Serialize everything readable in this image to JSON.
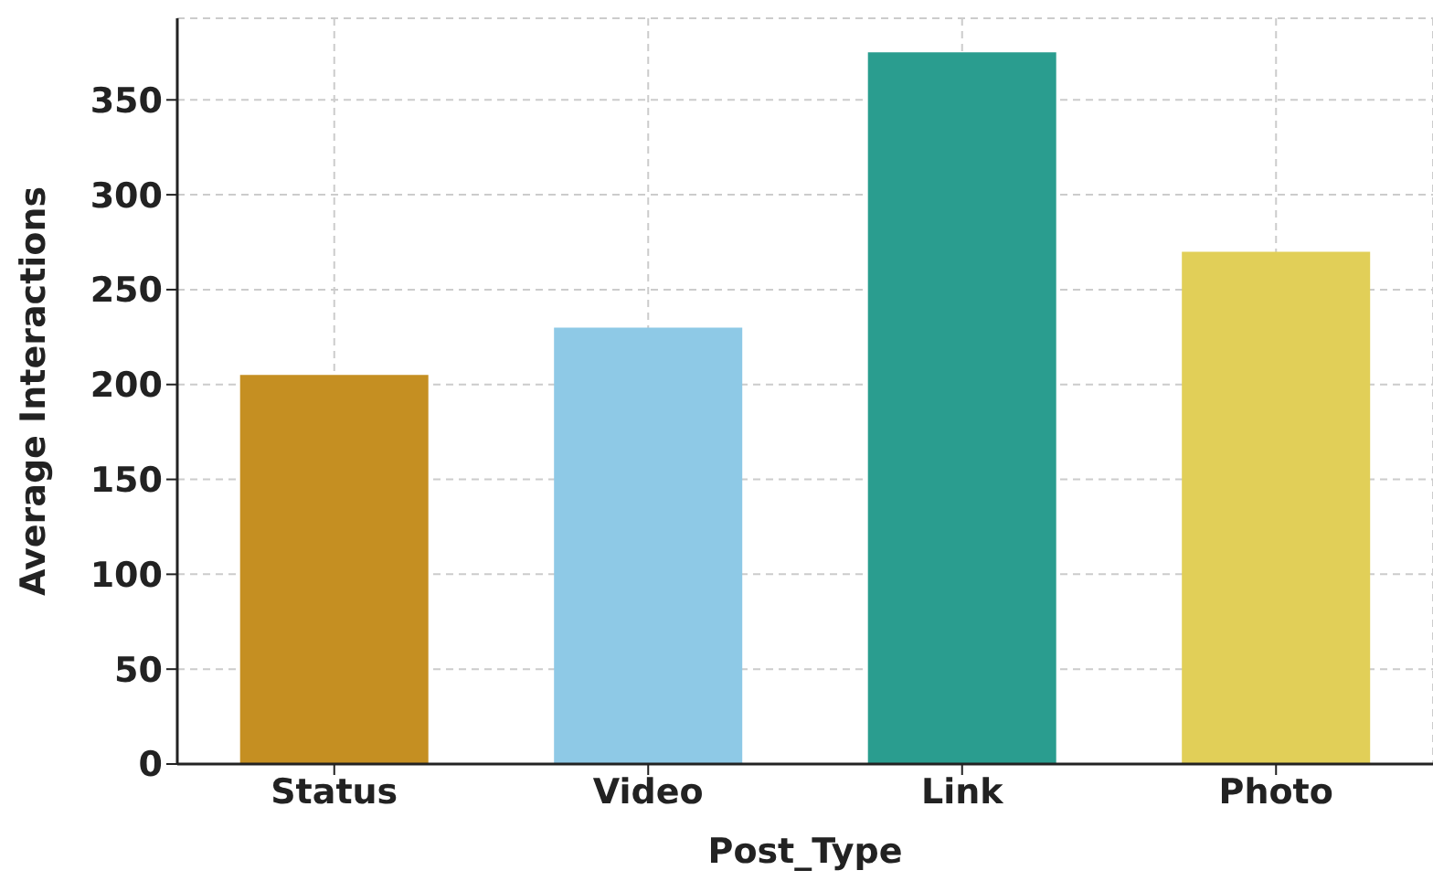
{
  "chart_data": {
    "type": "bar",
    "xlabel": "Post_Type",
    "ylabel": "Average Interactions",
    "categories": [
      "Status",
      "Video",
      "Link",
      "Photo"
    ],
    "values": [
      205,
      230,
      375,
      270
    ],
    "colors": [
      "#c58f22",
      "#8ec9e6",
      "#2a9d8f",
      "#e1cf58"
    ],
    "ylim": [
      0,
      393
    ],
    "yticks": [
      0,
      50,
      100,
      150,
      200,
      250,
      300,
      350
    ],
    "grid": true
  }
}
